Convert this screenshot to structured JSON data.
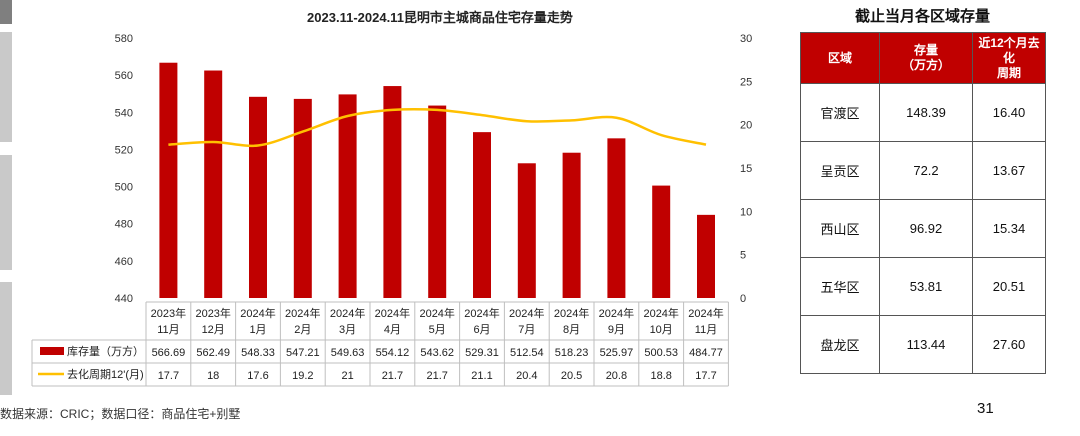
{
  "chart_data": {
    "type": "bar+line",
    "title": "2023.11-2024.11昆明市主城商品住宅存量走势",
    "categories": [
      [
        "2023年",
        "11月"
      ],
      [
        "2023年",
        "12月"
      ],
      [
        "2024年",
        "1月"
      ],
      [
        "2024年",
        "2月"
      ],
      [
        "2024年",
        "3月"
      ],
      [
        "2024年",
        "4月"
      ],
      [
        "2024年",
        "5月"
      ],
      [
        "2024年",
        "6月"
      ],
      [
        "2024年",
        "7月"
      ],
      [
        "2024年",
        "8月"
      ],
      [
        "2024年",
        "9月"
      ],
      [
        "2024年",
        "10月"
      ],
      [
        "2024年",
        "11月"
      ]
    ],
    "series": [
      {
        "name": "库存量（万方）",
        "type": "bar",
        "axis": "left",
        "color": "#c00000",
        "values": [
          566.69,
          562.49,
          548.33,
          547.21,
          549.63,
          554.12,
          543.62,
          529.31,
          512.54,
          518.23,
          525.97,
          500.53,
          484.77
        ]
      },
      {
        "name": "去化周期12'(月)",
        "type": "line",
        "axis": "right",
        "color": "#ffc000",
        "values": [
          17.7,
          18,
          17.6,
          19.2,
          21,
          21.7,
          21.7,
          21.1,
          20.4,
          20.5,
          20.8,
          18.8,
          17.7
        ]
      }
    ],
    "y_left": {
      "min": 440,
      "max": 580,
      "ticks": [
        440,
        460,
        480,
        500,
        520,
        540,
        560,
        580
      ]
    },
    "y_right": {
      "min": 0,
      "max": 30,
      "ticks": [
        0,
        5,
        10,
        15,
        20,
        25,
        30
      ]
    },
    "data_table": true,
    "legend": "in data table"
  },
  "region_table": {
    "title": "截止当月各区域存量",
    "headers": [
      "区域",
      "存量\n（万方）",
      "近12个月去化\n周期"
    ],
    "rows": [
      [
        "官渡区",
        "148.39",
        "16.40"
      ],
      [
        "呈贡区",
        "72.2",
        "13.67"
      ],
      [
        "西山区",
        "96.92",
        "15.34"
      ],
      [
        "五华区",
        "53.81",
        "20.51"
      ],
      [
        "盘龙区",
        "113.44",
        "27.60"
      ]
    ],
    "header_color": "#c00000"
  },
  "footer": {
    "source": "数据来源：CRIC；数据口径：商品住宅+别墅",
    "page_number": "31"
  }
}
